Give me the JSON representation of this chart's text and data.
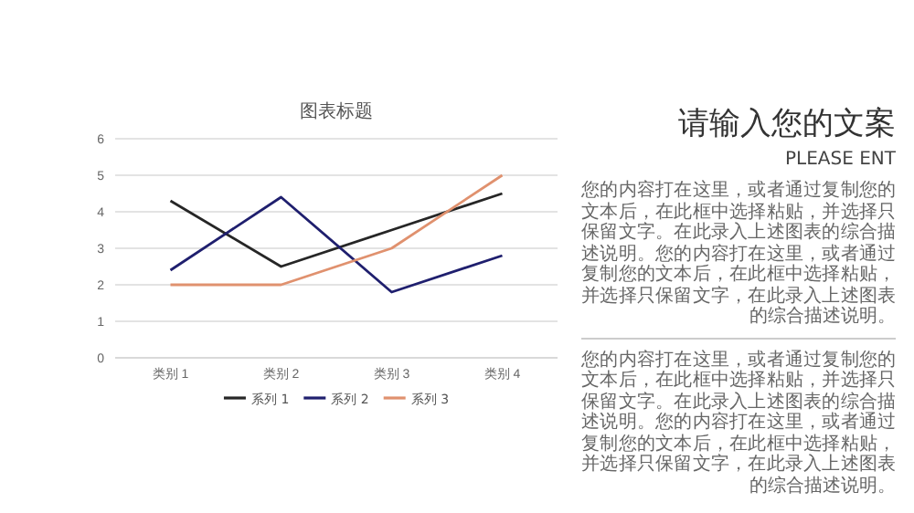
{
  "chart_data": {
    "type": "line",
    "title": "图表标题",
    "categories": [
      "类别 1",
      "类别 2",
      "类别 3",
      "类别 4"
    ],
    "series": [
      {
        "name": "系列 1",
        "color": "#262626",
        "values": [
          4.3,
          2.5,
          3.5,
          4.5
        ]
      },
      {
        "name": "系列 2",
        "color": "#1f1f6e",
        "values": [
          2.4,
          4.4,
          1.8,
          2.8
        ]
      },
      {
        "name": "系列 3",
        "color": "#e0916e",
        "values": [
          2,
          2,
          3,
          5
        ]
      }
    ],
    "ylim": [
      0,
      6
    ],
    "yticks": [
      0,
      1,
      2,
      3,
      4,
      5,
      6
    ],
    "grid": "y",
    "legend": "bottom",
    "annotations": [
      "请输入您的文案",
      "PLEASE ENT",
      "您的内容打在这里，或者通过复制您的文本后，在此框中选择粘贴，并选择只保留文字。在此录入上述图表的综合描述说明。您的内容打在这里，或者通过复制您的文本后，在此框中选择粘贴，并选择只保留文字，在此录入上述图表的综合描述说明。",
      "您的内容打在这里，或者通过复制您的文本后，在此框中选择粘贴，并选择只保留文字。在此录入上述图表的综合描述说明。您的内容打在这里，或者通过复制您的文本后，在此框中选择粘贴，并选择只保留文字，在此录入上述图表的综合描述说明。"
    ]
  }
}
